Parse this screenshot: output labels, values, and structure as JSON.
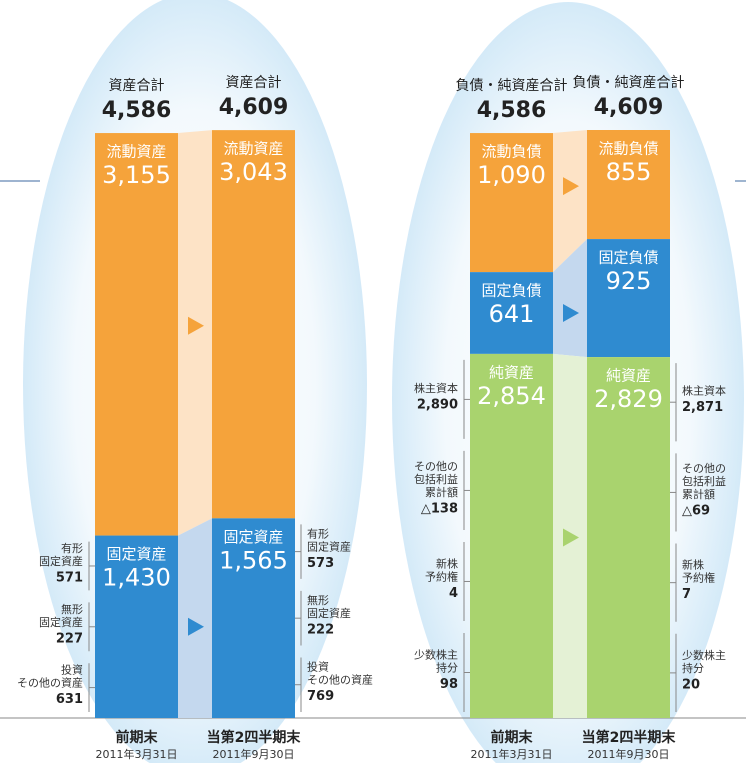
{
  "panels": [
    {
      "columns": [
        {
          "total_label": "資産合計",
          "total": {
            "value": 4586,
            "label": "4,586"
          },
          "segments": [
            {
              "name": "流動資産",
              "value": 3155,
              "label": "3,155",
              "color": "#f5a33b",
              "band_color": "#fde3c6"
            },
            {
              "name": "固定資産",
              "value": 1430,
              "label": "1,430",
              "color": "#2f8bd0",
              "band_color": "#c4d8ee"
            }
          ],
          "notes": {
            "segment": 1,
            "items": [
              {
                "name": [
                  "有形",
                  "固定資産"
                ],
                "value": {
                  "value": 571,
                  "label": "571"
                }
              },
              {
                "name": [
                  "無形",
                  "固定資産"
                ],
                "value": {
                  "value": 227,
                  "label": "227"
                }
              },
              {
                "name": [
                  "投資",
                  "その他の資産"
                ],
                "value": {
                  "value": 631,
                  "label": "631"
                }
              }
            ]
          },
          "footer": "前期末",
          "date": "2011年3月31日"
        },
        {
          "total_label": "資産合計",
          "total": {
            "value": 4609,
            "label": "4,609"
          },
          "segments": [
            {
              "name": "流動資産",
              "value": 3043,
              "label": "3,043",
              "color": "#f5a33b"
            },
            {
              "name": "固定資産",
              "value": 1565,
              "label": "1,565",
              "color": "#2f8bd0"
            }
          ],
          "notes": {
            "segment": 1,
            "items": [
              {
                "name": [
                  "有形",
                  "固定資産"
                ],
                "value": {
                  "value": 573,
                  "label": "573"
                }
              },
              {
                "name": [
                  "無形",
                  "固定資産"
                ],
                "value": {
                  "value": 222,
                  "label": "222"
                }
              },
              {
                "name": [
                  "投資",
                  "その他の資産"
                ],
                "value": {
                  "value": 769,
                  "label": "769"
                }
              }
            ]
          },
          "footer": "当第2四半期末",
          "date": "2011年9月30日"
        }
      ]
    },
    {
      "columns": [
        {
          "total_label": "負債・純資産合計",
          "total": {
            "value": 4586,
            "label": "4,586"
          },
          "segments": [
            {
              "name": "流動負債",
              "value": 1090,
              "label": "1,090",
              "color": "#f5a33b",
              "band_color": "#fde3c6"
            },
            {
              "name": "固定負債",
              "value": 641,
              "label": "641",
              "color": "#2f8bd0",
              "band_color": "#c4d8ee"
            },
            {
              "name": "純資産",
              "value": 2854,
              "label": "2,854",
              "color": "#a9d36e",
              "band_color": "#e4f1d5"
            }
          ],
          "notes": {
            "segment": 2,
            "items": [
              {
                "name": [
                  "株主資本"
                ],
                "value": {
                  "value": 2890,
                  "label": "2,890"
                }
              },
              {
                "name": [
                  "その他の",
                  "包括利益",
                  "累計額"
                ],
                "value": {
                  "value": -138,
                  "label": "△138"
                }
              },
              {
                "name": [
                  "新株",
                  "予約権"
                ],
                "value": {
                  "value": 4,
                  "label": "4"
                }
              },
              {
                "name": [
                  "少数株主",
                  "持分"
                ],
                "value": {
                  "value": 98,
                  "label": "98"
                }
              }
            ]
          },
          "footer": "前期末",
          "date": "2011年3月31日"
        },
        {
          "total_label": "負債・純資産合計",
          "total": {
            "value": 4609,
            "label": "4,609"
          },
          "segments": [
            {
              "name": "流動負債",
              "value": 855,
              "label": "855",
              "color": "#f5a33b"
            },
            {
              "name": "固定負債",
              "value": 925,
              "label": "925",
              "color": "#2f8bd0"
            },
            {
              "name": "純資産",
              "value": 2829,
              "label": "2,829",
              "color": "#a9d36e"
            }
          ],
          "notes": {
            "segment": 2,
            "items": [
              {
                "name": [
                  "株主資本"
                ],
                "value": {
                  "value": 2871,
                  "label": "2,871"
                }
              },
              {
                "name": [
                  "その他の",
                  "包括利益",
                  "累計額"
                ],
                "value": {
                  "value": -69,
                  "label": "△69"
                }
              },
              {
                "name": [
                  "新株",
                  "予約権"
                ],
                "value": {
                  "value": 7,
                  "label": "7"
                }
              },
              {
                "name": [
                  "少数株主",
                  "持分"
                ],
                "value": {
                  "value": 20,
                  "label": "20"
                }
              }
            ]
          },
          "footer": "当第2四半期末",
          "date": "2011年9月30日"
        }
      ]
    }
  ]
}
